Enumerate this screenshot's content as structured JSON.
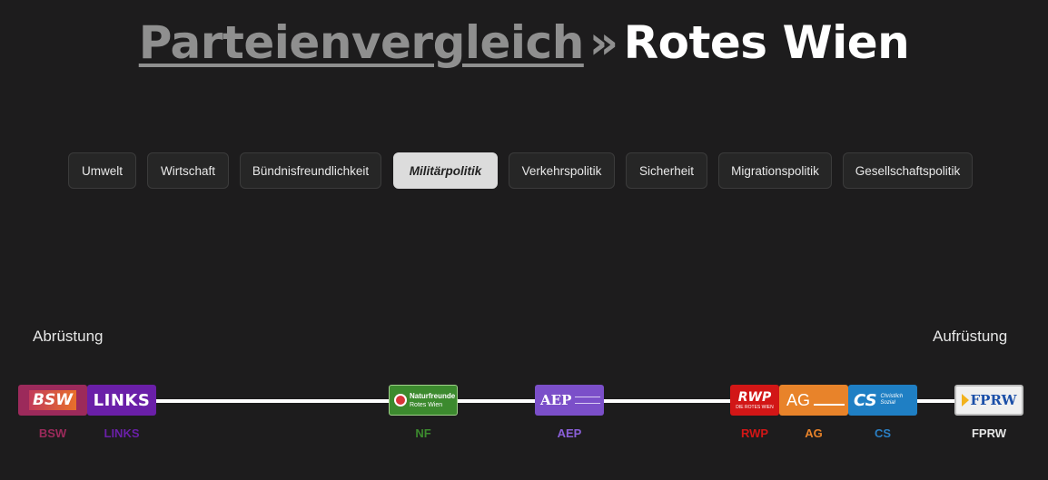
{
  "header": {
    "breadcrumb_link": "Parteienvergleich",
    "separator": "»",
    "current": "Rotes Wien"
  },
  "tabs": [
    {
      "label": "Umwelt",
      "active": false
    },
    {
      "label": "Wirtschaft",
      "active": false
    },
    {
      "label": "Bündnisfreundlichkeit",
      "active": false
    },
    {
      "label": "Militärpolitik",
      "active": true
    },
    {
      "label": "Verkehrspolitik",
      "active": false
    },
    {
      "label": "Sicherheit",
      "active": false
    },
    {
      "label": "Migrationspolitik",
      "active": false
    },
    {
      "label": "Gesellschaftspolitik",
      "active": false
    }
  ],
  "scale": {
    "left_label": "Abrüstung",
    "right_label": "Aufrüstung"
  },
  "parties": [
    {
      "abbr": "BSW",
      "logo_text": "BSW",
      "logo_subtext": "",
      "color": "#9c2a5b",
      "label_color": "#9c2a5b"
    },
    {
      "abbr": "LINKS",
      "logo_text": "LINKS",
      "logo_subtext": "",
      "color": "#6a1fa8",
      "label_color": "#6a1fa8"
    },
    {
      "abbr": "NF",
      "logo_text": "Naturfreunde",
      "logo_subtext": "Rotes Wien",
      "color": "#3c8a2e",
      "label_color": "#3c8a2e"
    },
    {
      "abbr": "AEP",
      "logo_text": "AEP",
      "logo_subtext": "",
      "color": "#7b4fc9",
      "label_color": "#8a5fd8"
    },
    {
      "abbr": "RWP",
      "logo_text": "RWP",
      "logo_subtext": "DIE ROTES WIEN",
      "color": "#d21616",
      "label_color": "#d21616"
    },
    {
      "abbr": "AG",
      "logo_text": "AG",
      "logo_subtext": "",
      "color": "#e8832a",
      "label_color": "#e8832a"
    },
    {
      "abbr": "CS",
      "logo_text": "CS",
      "logo_subtext": "Christlich Sozial",
      "color": "#1f7fc4",
      "label_color": "#2a7fc4"
    },
    {
      "abbr": "FPRW",
      "logo_text": "FPRW",
      "logo_subtext": "",
      "color": "#f0f0f0",
      "label_color": "#e6e6e6"
    }
  ]
}
